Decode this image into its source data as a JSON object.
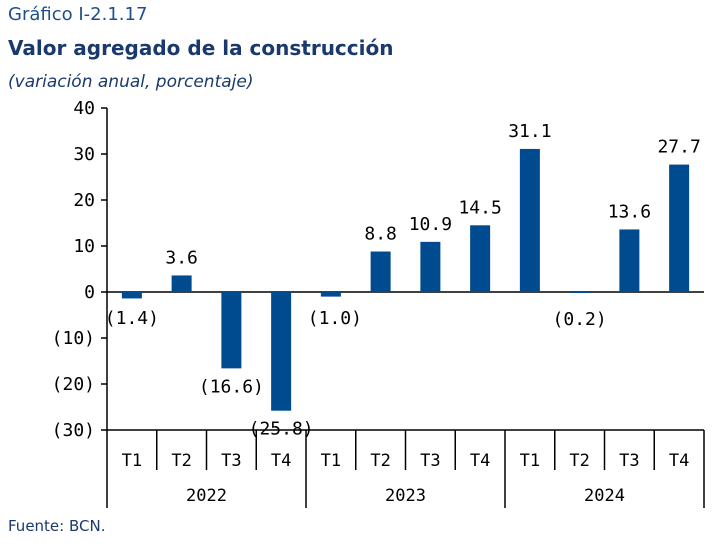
{
  "header": {
    "figure_number": "Gráfico I-2.1.17",
    "title": "Valor agregado de la construcción",
    "subtitle": "(variación anual, porcentaje)"
  },
  "source": "Fuente: BCN.",
  "colors": {
    "bar": "#004a8f",
    "axis": "#000000"
  },
  "chart_data": {
    "type": "bar",
    "title": "Valor agregado de la construcción",
    "subtitle": "(variación anual, porcentaje)",
    "categories": [
      "T1",
      "T2",
      "T3",
      "T4",
      "T1",
      "T2",
      "T3",
      "T4",
      "T1",
      "T2",
      "T3",
      "T4"
    ],
    "groups": [
      {
        "label": "2022",
        "count": 4
      },
      {
        "label": "2023",
        "count": 4
      },
      {
        "label": "2024",
        "count": 4
      }
    ],
    "values": [
      -1.4,
      3.6,
      -16.6,
      -25.8,
      -1.0,
      8.8,
      10.9,
      14.5,
      31.1,
      -0.2,
      13.6,
      27.7
    ],
    "data_labels": [
      "(1.4)",
      "3.6",
      "(16.6)",
      "(25.8)",
      "(1.0)",
      "8.8",
      "10.9",
      "14.5",
      "31.1",
      "(0.2)",
      "13.6",
      "27.7"
    ],
    "ylim": [
      -30,
      40
    ],
    "yticks": [
      40,
      30,
      20,
      10,
      0,
      -10,
      -20,
      -30
    ],
    "ytick_labels": [
      "40",
      "30",
      "20",
      "10",
      "0",
      "(10)",
      "(20)",
      "(30)"
    ],
    "grid": false,
    "legend": "none"
  }
}
